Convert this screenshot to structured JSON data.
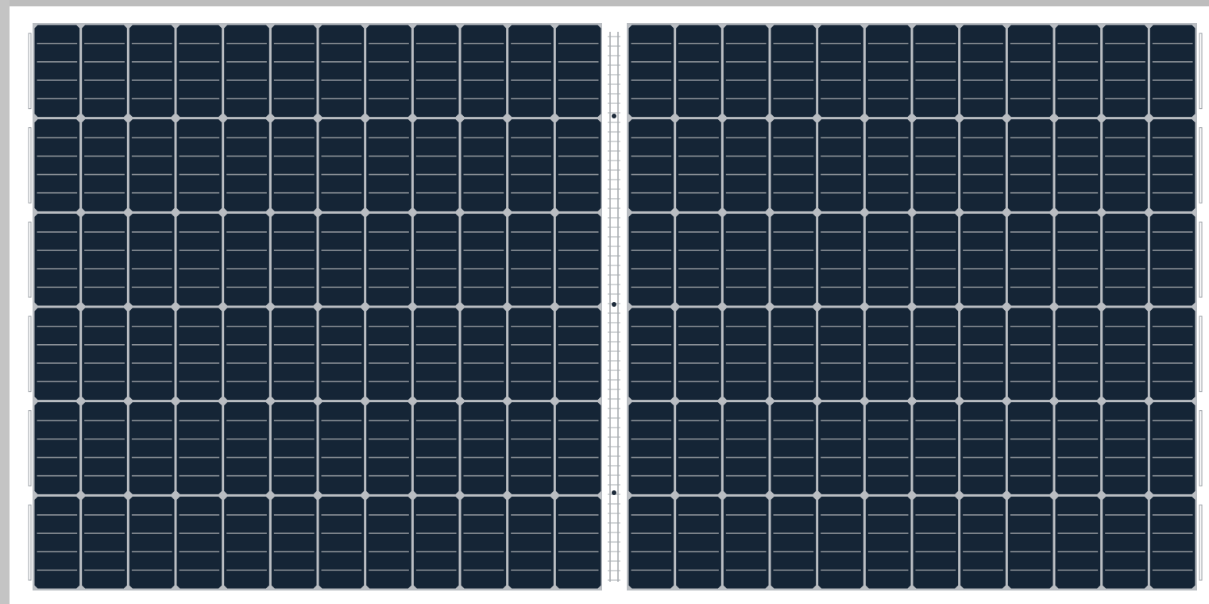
{
  "image": {
    "subject": "solar-panel",
    "colors": {
      "cell": "#152536",
      "grid": "#b9bdc2",
      "busbar": "#8c9298",
      "frame": "#c4c4c4",
      "background": "#ffffff"
    },
    "layout": {
      "halves": 2,
      "strings_per_half": 6,
      "cells_per_string": 12,
      "busbars_per_cell": 4
    }
  }
}
